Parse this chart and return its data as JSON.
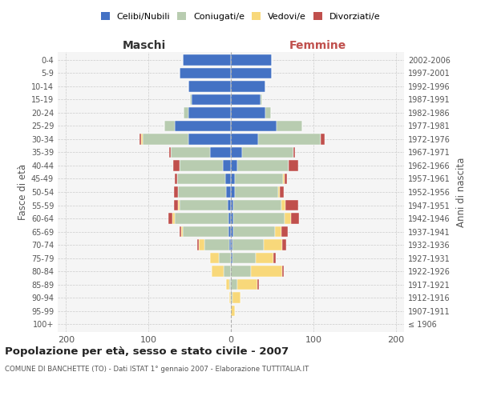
{
  "age_groups": [
    "100+",
    "95-99",
    "90-94",
    "85-89",
    "80-84",
    "75-79",
    "70-74",
    "65-69",
    "60-64",
    "55-59",
    "50-54",
    "45-49",
    "40-44",
    "35-39",
    "30-34",
    "25-29",
    "20-24",
    "15-19",
    "10-14",
    "5-9",
    "0-4"
  ],
  "birth_years": [
    "≤ 1906",
    "1907-1911",
    "1912-1916",
    "1917-1921",
    "1922-1926",
    "1927-1931",
    "1932-1936",
    "1937-1941",
    "1942-1946",
    "1947-1951",
    "1952-1956",
    "1957-1961",
    "1962-1966",
    "1967-1971",
    "1972-1976",
    "1977-1981",
    "1982-1986",
    "1987-1991",
    "1992-1996",
    "1997-2001",
    "2002-2006"
  ],
  "colors": {
    "celibi": "#4472C4",
    "coniugati": "#B8CCB0",
    "vedovi": "#F8D87A",
    "divorziati": "#C0504D"
  },
  "maschi": {
    "celibi": [
      0,
      0,
      0,
      0,
      0,
      0,
      2,
      3,
      3,
      4,
      6,
      7,
      10,
      25,
      52,
      68,
      52,
      48,
      52,
      62,
      58
    ],
    "coniugati": [
      0,
      0,
      0,
      2,
      9,
      15,
      30,
      55,
      65,
      58,
      58,
      58,
      52,
      48,
      55,
      13,
      5,
      2,
      0,
      0,
      0
    ],
    "vedovi": [
      0,
      0,
      2,
      4,
      14,
      10,
      7,
      2,
      3,
      2,
      0,
      0,
      0,
      0,
      2,
      0,
      0,
      0,
      0,
      0,
      0
    ],
    "divorziati": [
      0,
      0,
      0,
      0,
      0,
      0,
      2,
      2,
      5,
      5,
      5,
      3,
      8,
      2,
      2,
      0,
      0,
      0,
      0,
      0,
      0
    ]
  },
  "femmine": {
    "celibi": [
      0,
      0,
      0,
      0,
      0,
      2,
      2,
      3,
      3,
      3,
      5,
      5,
      8,
      14,
      33,
      55,
      42,
      36,
      42,
      50,
      50
    ],
    "coniugati": [
      0,
      0,
      2,
      8,
      24,
      28,
      38,
      50,
      62,
      58,
      52,
      58,
      62,
      62,
      76,
      32,
      7,
      2,
      0,
      0,
      0
    ],
    "vedovi": [
      0,
      5,
      10,
      24,
      38,
      22,
      22,
      8,
      8,
      5,
      2,
      2,
      0,
      0,
      0,
      0,
      0,
      0,
      0,
      0,
      0
    ],
    "divorziati": [
      0,
      0,
      0,
      2,
      2,
      2,
      5,
      8,
      10,
      16,
      5,
      3,
      12,
      2,
      5,
      0,
      0,
      0,
      0,
      0,
      0
    ]
  },
  "xlim": 210,
  "title": "Popolazione per età, sesso e stato civile - 2007",
  "subtitle": "COMUNE DI BANCHETTE (TO) - Dati ISTAT 1° gennaio 2007 - Elaborazione TUTTITALIA.IT",
  "ylabel": "Fasce di età",
  "ylabel_right": "Anni di nascita",
  "label_maschi": "Maschi",
  "label_femmine": "Femmine",
  "bg_color": "#f5f5f5"
}
